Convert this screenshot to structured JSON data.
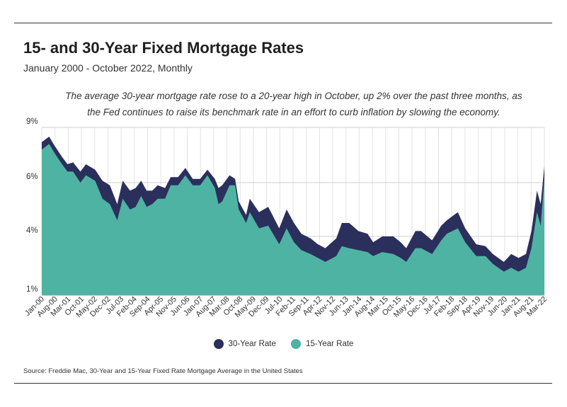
{
  "header": {
    "title": "15- and 30-Year Fixed Mortgage Rates",
    "subtitle": "January 2000 - October 2022, Monthly",
    "annotation": "The average 30-year mortgage rate rose to a 20-year high in October, up 2% over the past three months, as the Fed continues to raise its benchmark rate in an effort to curb inflation by slowing the economy."
  },
  "legend": {
    "items": [
      {
        "label": "30-Year Rate",
        "color": "#2b2f5c"
      },
      {
        "label": "15-Year Rate",
        "color": "#4fb3a3"
      }
    ]
  },
  "source": "Source:  Freddie Mac, 30-Year  and 15-Year Fixed Rate Mortgage Average in the United States",
  "chart_data": {
    "type": "area",
    "title": "15- and 30-Year Fixed Mortgage Rates",
    "xlabel": "",
    "ylabel": "",
    "ylim": [
      1,
      9
    ],
    "yticks": [
      1,
      4,
      6,
      9
    ],
    "ytick_labels": [
      "1%",
      "4%",
      "6%",
      "9%"
    ],
    "xlim": [
      "2000-01",
      "2022-10"
    ],
    "xtick_labels": [
      "Jan-00",
      "Aug-00",
      "Mar-01",
      "Oct-01",
      "May-02",
      "Dec-02",
      "Jul-03",
      "Feb-04",
      "Sep-04",
      "Apr-05",
      "Nov-05",
      "Jun-06",
      "Jan-07",
      "Aug-07",
      "Mar-08",
      "Oct-08",
      "May-09",
      "Dec-09",
      "Jul-10",
      "Feb-11",
      "Sep-11",
      "Apr-12",
      "Nov-12",
      "Jun-13",
      "Jan-14",
      "Aug-14",
      "Mar-15",
      "Oct-15",
      "May-16",
      "Dec-16",
      "Jul-17",
      "Feb-18",
      "Sep-18",
      "Apr-19",
      "Nov-19",
      "Jun-20",
      "Jan-21",
      "Aug-21",
      "Mar-22"
    ],
    "grid": true,
    "legend_position": "bottom",
    "series": [
      {
        "name": "30-Year Rate",
        "color": "#2b2f5c",
        "points": [
          [
            "2000-01",
            8.2
          ],
          [
            "2000-05",
            8.5
          ],
          [
            "2000-08",
            8.0
          ],
          [
            "2000-12",
            7.4
          ],
          [
            "2001-03",
            7.0
          ],
          [
            "2001-06",
            7.1
          ],
          [
            "2001-10",
            6.6
          ],
          [
            "2002-01",
            7.0
          ],
          [
            "2002-06",
            6.7
          ],
          [
            "2002-10",
            6.1
          ],
          [
            "2003-02",
            5.9
          ],
          [
            "2003-06",
            5.2
          ],
          [
            "2003-09",
            6.1
          ],
          [
            "2004-01",
            5.7
          ],
          [
            "2004-04",
            5.8
          ],
          [
            "2004-07",
            6.1
          ],
          [
            "2004-10",
            5.7
          ],
          [
            "2005-01",
            5.7
          ],
          [
            "2005-04",
            5.9
          ],
          [
            "2005-08",
            5.8
          ],
          [
            "2005-11",
            6.3
          ],
          [
            "2006-03",
            6.3
          ],
          [
            "2006-07",
            6.8
          ],
          [
            "2006-11",
            6.2
          ],
          [
            "2007-03",
            6.2
          ],
          [
            "2007-07",
            6.7
          ],
          [
            "2007-11",
            6.2
          ],
          [
            "2008-01",
            5.8
          ],
          [
            "2008-03",
            5.9
          ],
          [
            "2008-07",
            6.4
          ],
          [
            "2008-10",
            6.2
          ],
          [
            "2008-12",
            5.3
          ],
          [
            "2009-04",
            4.8
          ],
          [
            "2009-06",
            5.4
          ],
          [
            "2009-11",
            4.9
          ],
          [
            "2010-04",
            5.1
          ],
          [
            "2010-10",
            4.3
          ],
          [
            "2011-02",
            5.0
          ],
          [
            "2011-06",
            4.5
          ],
          [
            "2011-10",
            4.1
          ],
          [
            "2012-03",
            3.9
          ],
          [
            "2012-07",
            3.6
          ],
          [
            "2012-11",
            3.4
          ],
          [
            "2013-05",
            3.9
          ],
          [
            "2013-08",
            4.5
          ],
          [
            "2013-12",
            4.5
          ],
          [
            "2014-05",
            4.2
          ],
          [
            "2014-10",
            4.1
          ],
          [
            "2015-01",
            3.7
          ],
          [
            "2015-06",
            4.0
          ],
          [
            "2015-12",
            4.0
          ],
          [
            "2016-04",
            3.7
          ],
          [
            "2016-07",
            3.4
          ],
          [
            "2016-12",
            4.2
          ],
          [
            "2017-03",
            4.2
          ],
          [
            "2017-09",
            3.8
          ],
          [
            "2018-02",
            4.4
          ],
          [
            "2018-05",
            4.6
          ],
          [
            "2018-11",
            4.9
          ],
          [
            "2019-03",
            4.3
          ],
          [
            "2019-09",
            3.6
          ],
          [
            "2020-02",
            3.5
          ],
          [
            "2020-06",
            3.1
          ],
          [
            "2020-12",
            2.7
          ],
          [
            "2021-04",
            3.1
          ],
          [
            "2021-08",
            2.9
          ],
          [
            "2021-12",
            3.1
          ],
          [
            "2022-03",
            4.2
          ],
          [
            "2022-06",
            5.7
          ],
          [
            "2022-08",
            5.2
          ],
          [
            "2022-10",
            6.9
          ]
        ]
      },
      {
        "name": "15-Year Rate",
        "color": "#4fb3a3",
        "points": [
          [
            "2000-01",
            7.8
          ],
          [
            "2000-05",
            8.1
          ],
          [
            "2000-08",
            7.6
          ],
          [
            "2000-12",
            7.0
          ],
          [
            "2001-03",
            6.6
          ],
          [
            "2001-06",
            6.6
          ],
          [
            "2001-10",
            6.0
          ],
          [
            "2002-01",
            6.4
          ],
          [
            "2002-06",
            6.1
          ],
          [
            "2002-10",
            5.4
          ],
          [
            "2003-02",
            5.2
          ],
          [
            "2003-06",
            4.6
          ],
          [
            "2003-09",
            5.4
          ],
          [
            "2004-01",
            5.0
          ],
          [
            "2004-04",
            5.1
          ],
          [
            "2004-07",
            5.5
          ],
          [
            "2004-10",
            5.1
          ],
          [
            "2005-01",
            5.2
          ],
          [
            "2005-04",
            5.4
          ],
          [
            "2005-08",
            5.4
          ],
          [
            "2005-11",
            5.9
          ],
          [
            "2006-03",
            5.9
          ],
          [
            "2006-07",
            6.4
          ],
          [
            "2006-11",
            5.9
          ],
          [
            "2007-03",
            5.9
          ],
          [
            "2007-07",
            6.4
          ],
          [
            "2007-11",
            5.8
          ],
          [
            "2008-01",
            5.2
          ],
          [
            "2008-03",
            5.3
          ],
          [
            "2008-07",
            5.9
          ],
          [
            "2008-10",
            5.9
          ],
          [
            "2008-12",
            5.0
          ],
          [
            "2009-04",
            4.5
          ],
          [
            "2009-06",
            4.9
          ],
          [
            "2009-11",
            4.3
          ],
          [
            "2010-04",
            4.4
          ],
          [
            "2010-10",
            3.6
          ],
          [
            "2011-02",
            4.3
          ],
          [
            "2011-06",
            3.7
          ],
          [
            "2011-10",
            3.3
          ],
          [
            "2012-03",
            3.1
          ],
          [
            "2012-07",
            2.9
          ],
          [
            "2012-11",
            2.7
          ],
          [
            "2013-05",
            3.0
          ],
          [
            "2013-08",
            3.5
          ],
          [
            "2013-12",
            3.4
          ],
          [
            "2014-05",
            3.3
          ],
          [
            "2014-10",
            3.2
          ],
          [
            "2015-01",
            3.0
          ],
          [
            "2015-06",
            3.2
          ],
          [
            "2015-12",
            3.1
          ],
          [
            "2016-04",
            2.9
          ],
          [
            "2016-07",
            2.7
          ],
          [
            "2016-12",
            3.4
          ],
          [
            "2017-03",
            3.4
          ],
          [
            "2017-09",
            3.1
          ],
          [
            "2018-02",
            3.8
          ],
          [
            "2018-05",
            4.1
          ],
          [
            "2018-11",
            4.3
          ],
          [
            "2019-03",
            3.7
          ],
          [
            "2019-09",
            3.0
          ],
          [
            "2020-02",
            3.0
          ],
          [
            "2020-06",
            2.6
          ],
          [
            "2020-12",
            2.2
          ],
          [
            "2021-04",
            2.4
          ],
          [
            "2021-08",
            2.2
          ],
          [
            "2021-12",
            2.4
          ],
          [
            "2022-03",
            3.4
          ],
          [
            "2022-06",
            4.9
          ],
          [
            "2022-08",
            4.4
          ],
          [
            "2022-10",
            6.2
          ]
        ]
      }
    ]
  }
}
